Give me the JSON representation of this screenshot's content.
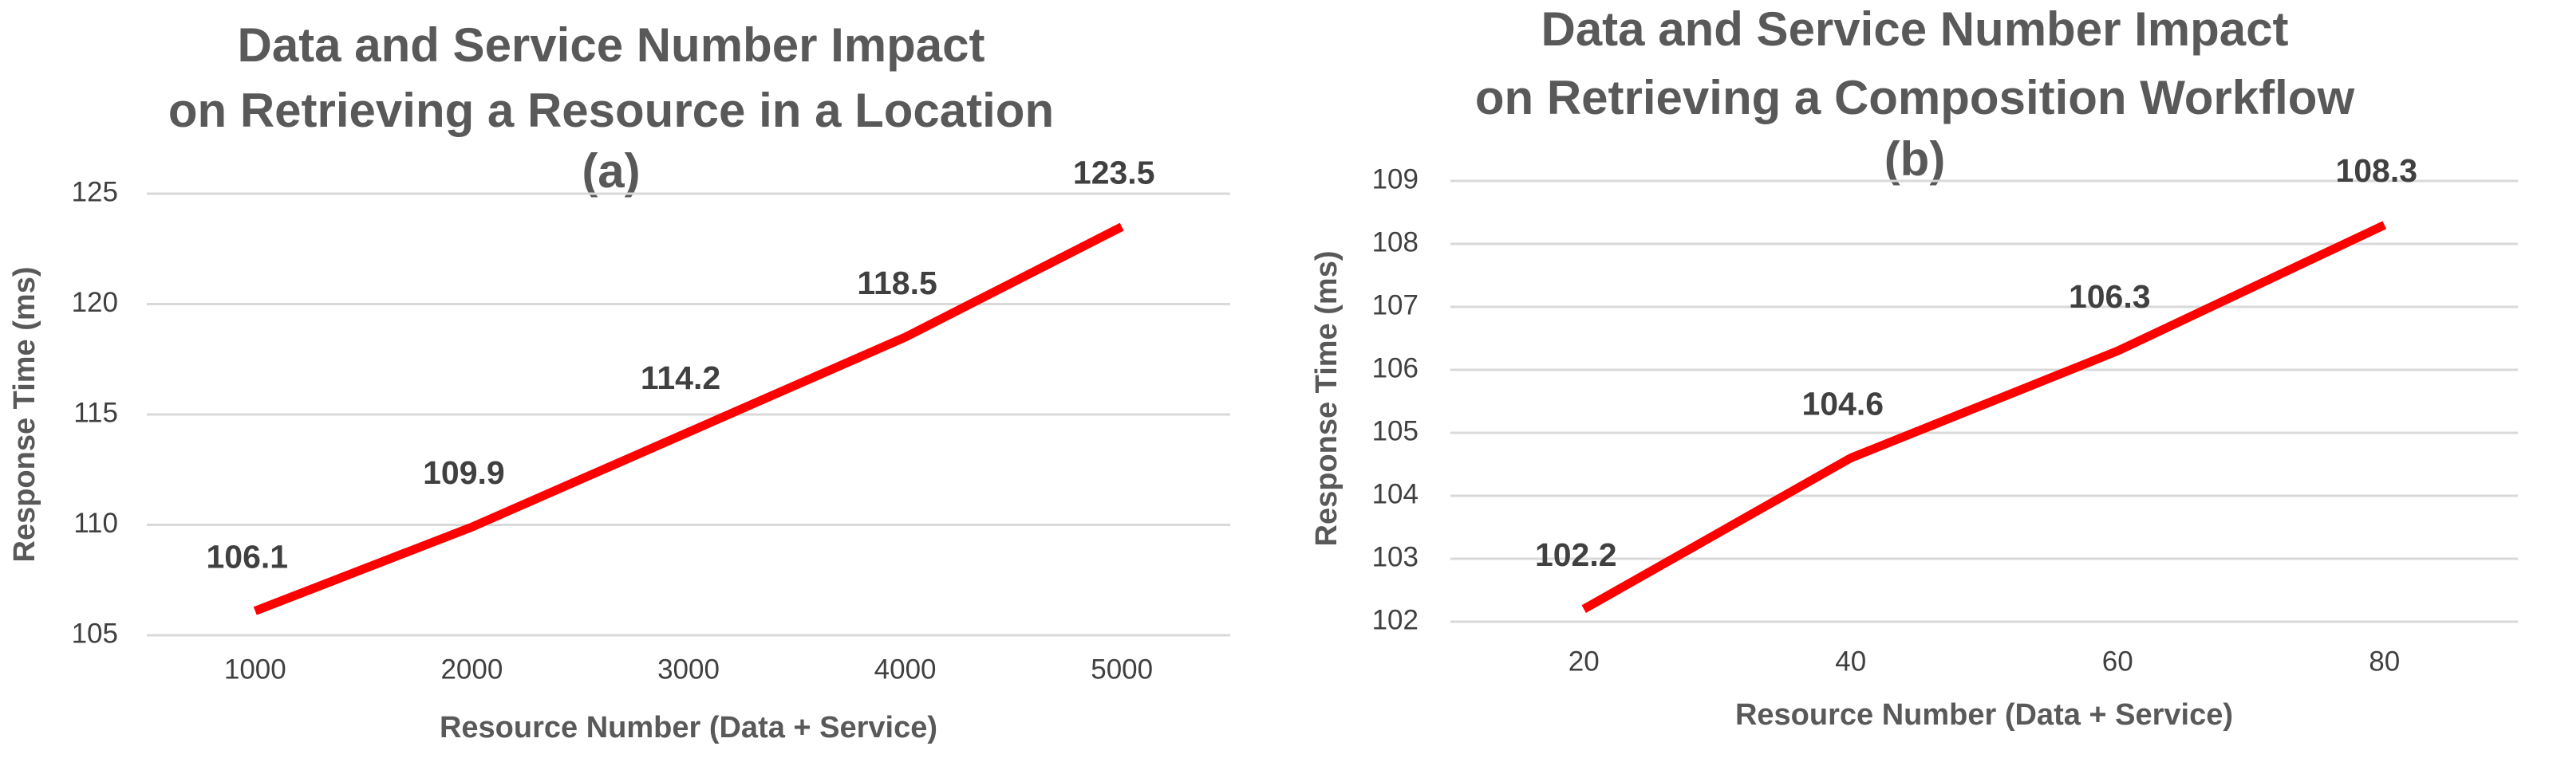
{
  "chart_data": [
    {
      "type": "line",
      "title": [
        "Data and Service Number Impact",
        "on Retrieving a Resource in a Location",
        "(a)"
      ],
      "x_label": "Resource Number (Data + Service)",
      "y_label": "Response Time (ms)",
      "categories": [
        "1000",
        "2000",
        "3000",
        "4000",
        "5000"
      ],
      "values": [
        106.1,
        109.9,
        114.2,
        118.5,
        123.5
      ],
      "color": "#ff0000",
      "ylim": [
        105,
        125
      ],
      "yticks": [
        105,
        110,
        115,
        120,
        125
      ],
      "grid": true
    },
    {
      "type": "line",
      "title": [
        "Data and Service Number Impact",
        "on Retrieving a Composition Workflow",
        "(b)"
      ],
      "x_label": "Resource Number (Data + Service)",
      "y_label": "Response Time (ms)",
      "categories": [
        "20",
        "40",
        "60",
        "80"
      ],
      "values": [
        102.2,
        104.6,
        106.3,
        108.3
      ],
      "color": "#ff0000",
      "ylim": [
        102,
        109
      ],
      "yticks": [
        102,
        103,
        104,
        105,
        106,
        107,
        108,
        109
      ],
      "grid": true
    }
  ]
}
